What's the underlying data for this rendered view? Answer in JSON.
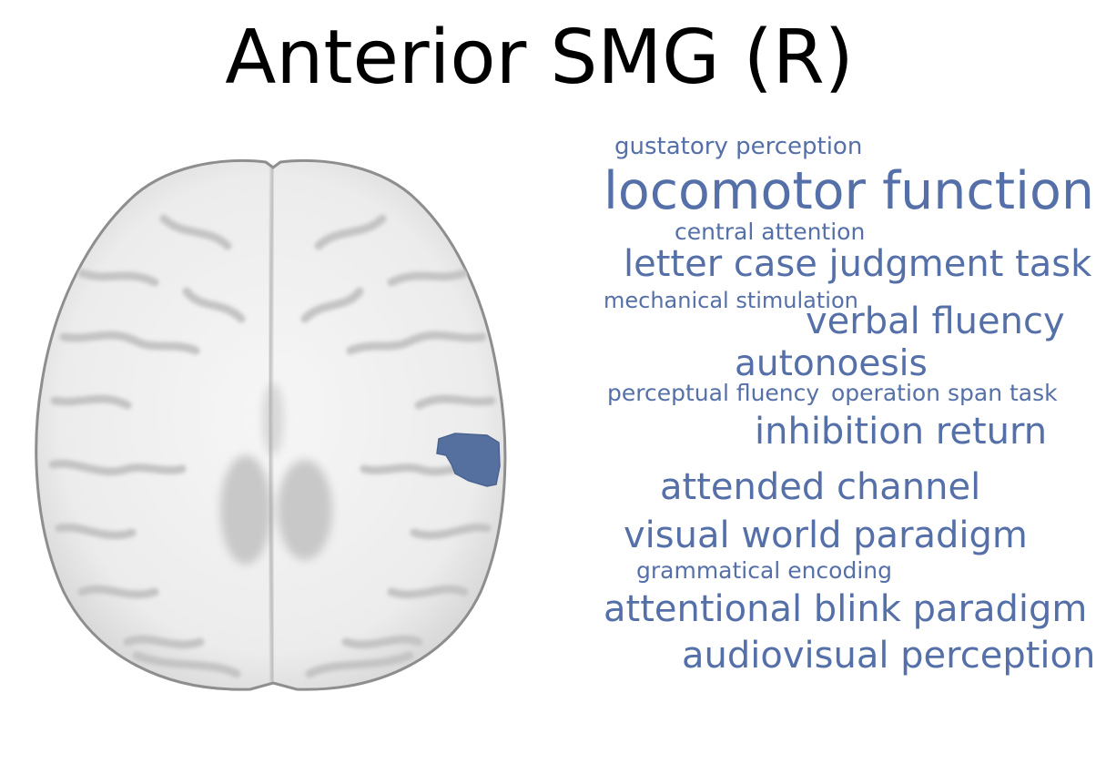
{
  "title": "Anterior SMG (R)",
  "colors": {
    "highlight": "#55709f",
    "terms": "#5570a8",
    "brain_fill": "#f3f3f3",
    "brain_edge": "#8e8e8e",
    "sulci": "#c9c9c9"
  },
  "brain_image": {
    "view": "axial",
    "highlighted_region": "right anterior supramarginal gyrus"
  },
  "terms": [
    {
      "text": "gustatory perception"
    },
    {
      "text": "locomotor function"
    },
    {
      "text": "central attention"
    },
    {
      "text": "letter case judgment task"
    },
    {
      "text": "mechanical stimulation"
    },
    {
      "text": "verbal fluency"
    },
    {
      "text": "autonoesis"
    },
    {
      "text": "perceptual fluency"
    },
    {
      "text": "operation span task"
    },
    {
      "text": "inhibition return"
    },
    {
      "text": "attended channel"
    },
    {
      "text": "visual world paradigm"
    },
    {
      "text": "grammatical encoding"
    },
    {
      "text": "attentional blink paradigm"
    },
    {
      "text": "audiovisual perception"
    }
  ]
}
